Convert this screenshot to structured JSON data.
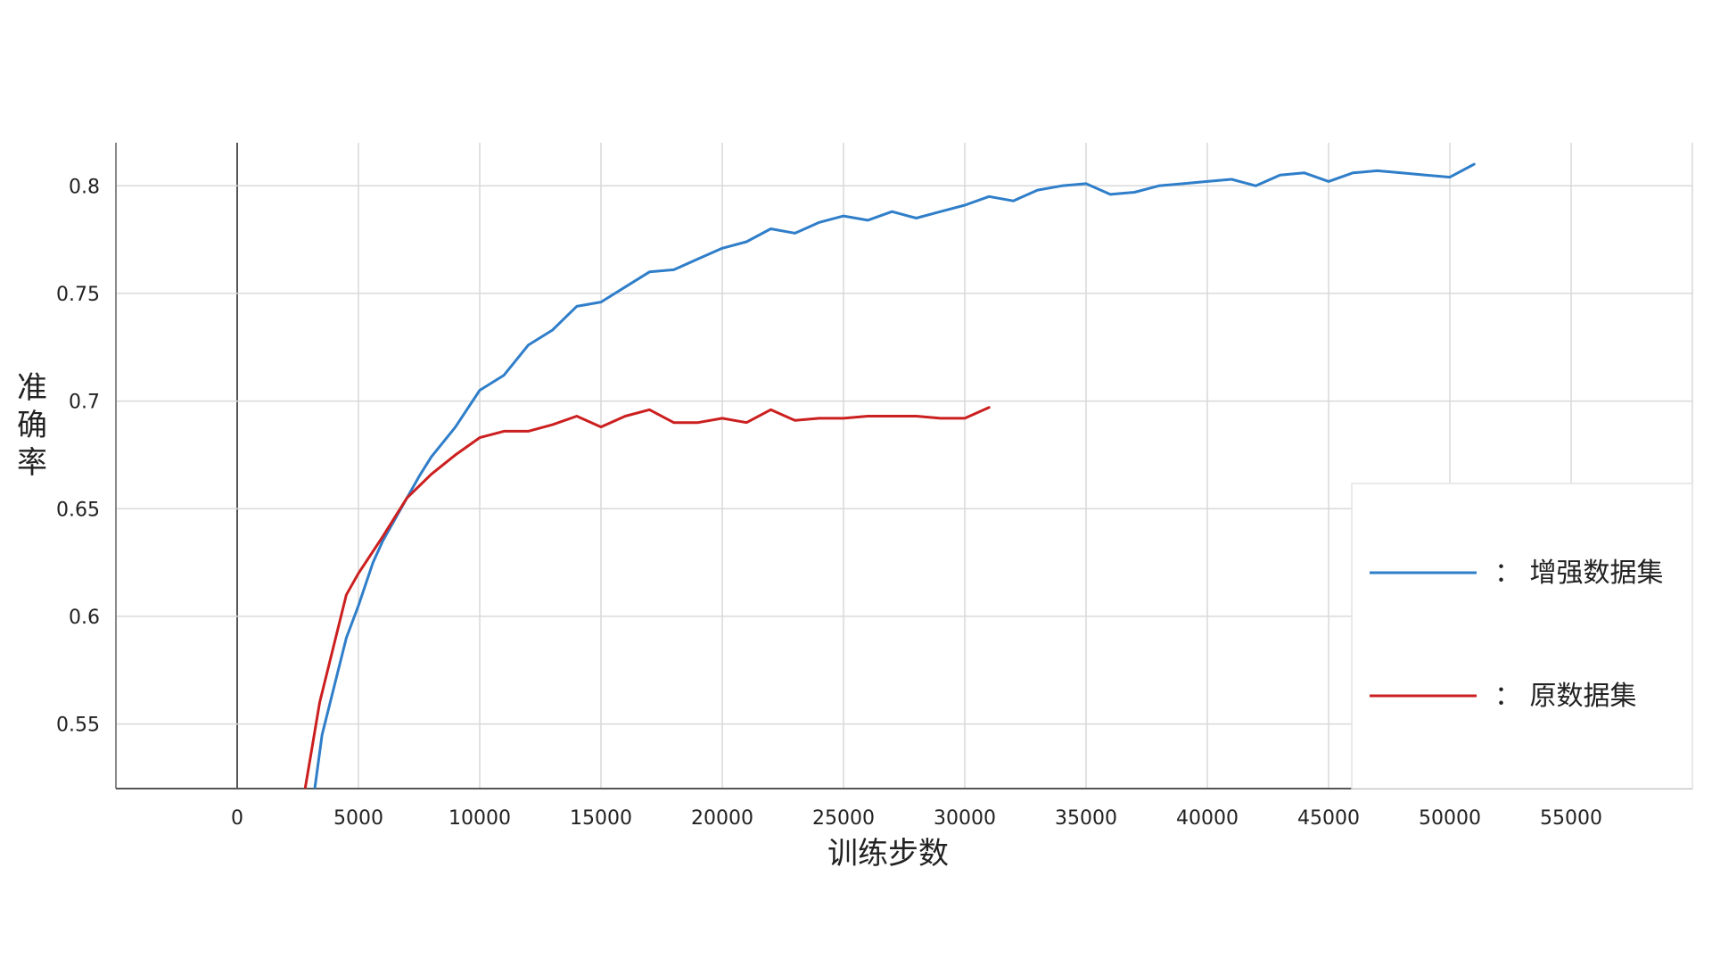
{
  "chart_data": {
    "type": "line",
    "title": "",
    "xlabel": "训练步数",
    "ylabel": "准确率",
    "xlim": [
      -5000,
      60000
    ],
    "ylim": [
      0.52,
      0.82
    ],
    "x_ticks": [
      0,
      5000,
      10000,
      15000,
      20000,
      25000,
      30000,
      35000,
      40000,
      45000,
      50000,
      55000
    ],
    "x_tick_labels": [
      "0",
      "5000",
      "10000",
      "15000",
      "20000",
      "25000",
      "30000",
      "35000",
      "40000",
      "45000",
      "50000",
      "55000"
    ],
    "y_ticks": [
      0.55,
      0.6,
      0.65,
      0.7,
      0.75,
      0.8
    ],
    "y_tick_labels": [
      "0.55",
      "0.6",
      "0.65",
      "0.7",
      "0.75",
      "0.8"
    ],
    "grid": true,
    "legend_position": "right",
    "series": [
      {
        "name": "增强数据集",
        "legend_label": "：  增强数据集",
        "color": "#2f7ec9",
        "points": [
          [
            3200,
            0.52
          ],
          [
            3500,
            0.545
          ],
          [
            4500,
            0.59
          ],
          [
            5000,
            0.605
          ],
          [
            5600,
            0.625
          ],
          [
            6000,
            0.635
          ],
          [
            7000,
            0.655
          ],
          [
            7500,
            0.665
          ],
          [
            8000,
            0.674
          ],
          [
            9000,
            0.688
          ],
          [
            10000,
            0.705
          ],
          [
            11000,
            0.712
          ],
          [
            12000,
            0.726
          ],
          [
            13000,
            0.733
          ],
          [
            14000,
            0.744
          ],
          [
            15000,
            0.746
          ],
          [
            16000,
            0.753
          ],
          [
            17000,
            0.76
          ],
          [
            18000,
            0.761
          ],
          [
            19000,
            0.766
          ],
          [
            20000,
            0.771
          ],
          [
            21000,
            0.774
          ],
          [
            22000,
            0.78
          ],
          [
            23000,
            0.778
          ],
          [
            24000,
            0.783
          ],
          [
            25000,
            0.786
          ],
          [
            26000,
            0.784
          ],
          [
            27000,
            0.788
          ],
          [
            28000,
            0.785
          ],
          [
            29000,
            0.788
          ],
          [
            30000,
            0.791
          ],
          [
            31000,
            0.795
          ],
          [
            32000,
            0.793
          ],
          [
            33000,
            0.798
          ],
          [
            34000,
            0.8
          ],
          [
            35000,
            0.801
          ],
          [
            36000,
            0.796
          ],
          [
            37000,
            0.797
          ],
          [
            38000,
            0.8
          ],
          [
            39000,
            0.801
          ],
          [
            40000,
            0.802
          ],
          [
            41000,
            0.803
          ],
          [
            42000,
            0.8
          ],
          [
            43000,
            0.805
          ],
          [
            44000,
            0.806
          ],
          [
            45000,
            0.802
          ],
          [
            46000,
            0.806
          ],
          [
            47000,
            0.807
          ],
          [
            48000,
            0.806
          ],
          [
            49000,
            0.805
          ],
          [
            50000,
            0.804
          ],
          [
            51000,
            0.81
          ]
        ]
      },
      {
        "name": "原数据集",
        "legend_label": "：  原数据集",
        "color": "#cc1f1f",
        "points": [
          [
            2800,
            0.52
          ],
          [
            3400,
            0.56
          ],
          [
            4500,
            0.61
          ],
          [
            5000,
            0.62
          ],
          [
            6000,
            0.637
          ],
          [
            7000,
            0.655
          ],
          [
            8000,
            0.666
          ],
          [
            9000,
            0.675
          ],
          [
            10000,
            0.683
          ],
          [
            11000,
            0.686
          ],
          [
            12000,
            0.686
          ],
          [
            13000,
            0.689
          ],
          [
            14000,
            0.693
          ],
          [
            15000,
            0.688
          ],
          [
            16000,
            0.693
          ],
          [
            17000,
            0.696
          ],
          [
            18000,
            0.69
          ],
          [
            19000,
            0.69
          ],
          [
            20000,
            0.692
          ],
          [
            21000,
            0.69
          ],
          [
            22000,
            0.696
          ],
          [
            23000,
            0.691
          ],
          [
            24000,
            0.692
          ],
          [
            25000,
            0.692
          ],
          [
            26000,
            0.693
          ],
          [
            27000,
            0.693
          ],
          [
            28000,
            0.693
          ],
          [
            29000,
            0.692
          ],
          [
            30000,
            0.692
          ],
          [
            31000,
            0.697
          ]
        ]
      }
    ]
  }
}
